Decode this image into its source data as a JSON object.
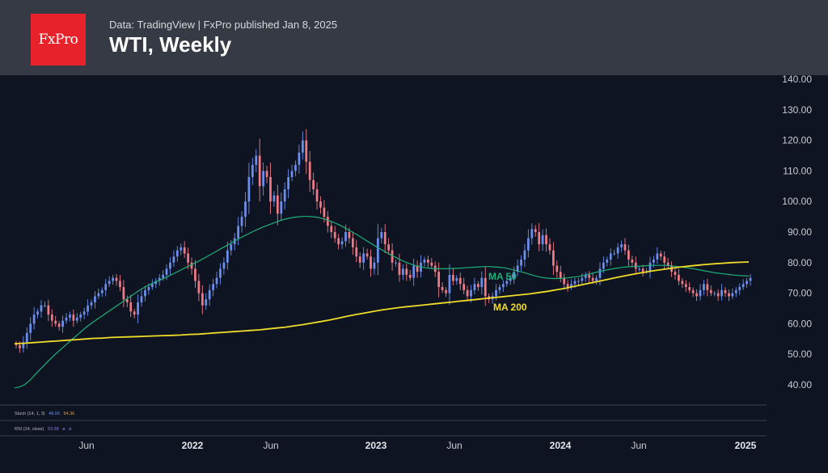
{
  "header": {
    "logo_text": "FxPro",
    "source": "Data: TradingView  |  FxPro published Jan 8, 2025",
    "title": "WTI, Weekly"
  },
  "indicators": {
    "stoch_label": "Stoch (14, 1, 3)",
    "stoch_v1": "48.06",
    "stoch_v2": "54.36",
    "rsi_label": "RSI (14, close)",
    "rsi_v1": "53.38",
    "rsi_v2": "ø",
    "rsi_v3": "ø"
  },
  "colors": {
    "background": "#0e1421",
    "up_candle": "#6c8fef",
    "down_candle": "#ef7b86",
    "ma50": "#1fb079",
    "ma200": "#f0dc2a",
    "header_bg": "#363a45",
    "logo_bg": "#e8222a"
  },
  "chart_data": {
    "type": "candlestick",
    "title": "WTI, Weekly",
    "x_ticks": [
      "Jun",
      "2022",
      "Jun",
      "2023",
      "Jun",
      "2024",
      "Jun",
      "2025"
    ],
    "y_ticks": [
      "140.00",
      "130.00",
      "120.00",
      "110.00",
      "100.00",
      "90.00",
      "80.00",
      "70.00",
      "60.00",
      "50.00",
      "40.00"
    ],
    "ylim": [
      34,
      142
    ],
    "close": [
      53,
      52,
      54,
      57,
      60,
      63,
      64,
      66,
      66,
      63,
      61,
      60,
      59,
      61,
      62,
      63,
      61,
      62,
      63,
      64,
      66,
      67,
      69,
      70,
      71,
      73,
      74,
      75,
      74,
      72,
      68,
      67,
      64,
      63,
      67,
      69,
      71,
      72,
      73,
      74,
      75,
      76,
      78,
      80,
      82,
      84,
      85,
      83,
      80,
      78,
      74,
      70,
      66,
      68,
      71,
      73,
      75,
      78,
      80,
      84,
      86,
      88,
      92,
      95,
      100,
      108,
      112,
      115,
      105,
      110,
      108,
      100,
      102,
      96,
      100,
      104,
      108,
      110,
      112,
      116,
      120,
      113,
      107,
      104,
      100,
      98,
      95,
      92,
      90,
      88,
      86,
      87,
      90,
      88,
      85,
      82,
      80,
      83,
      82,
      78,
      80,
      88,
      90,
      86,
      84,
      80,
      80,
      76,
      78,
      76,
      75,
      79,
      77,
      80,
      81,
      80,
      79,
      77,
      72,
      71,
      70,
      76,
      74,
      75,
      73,
      71,
      69,
      71,
      73,
      72,
      75,
      69,
      68,
      69,
      71,
      72,
      73,
      74,
      75,
      77,
      79,
      81,
      84,
      88,
      91,
      90,
      86,
      89,
      86,
      84,
      79,
      77,
      75,
      73,
      72,
      73,
      74,
      74,
      75,
      76,
      75,
      74,
      75,
      78,
      80,
      81,
      83,
      83,
      85,
      86,
      84,
      81,
      80,
      78,
      78,
      77,
      77,
      80,
      81,
      83,
      82,
      80,
      79,
      77,
      76,
      74,
      73,
      72,
      71,
      70,
      69,
      71,
      73,
      71,
      70,
      70,
      69,
      71,
      70,
      69,
      70,
      71,
      72,
      73,
      74,
      75
    ],
    "ma50": [
      39,
      39.3,
      40,
      41.3,
      43,
      44.7,
      46.3,
      48,
      49.5,
      51,
      52.4,
      53.8,
      55.2,
      56.6,
      58,
      59.3,
      60.5,
      61.6,
      62.7,
      63.8,
      64.9,
      66,
      67.1,
      68.2,
      69.3,
      70.4,
      71.4,
      72.3,
      73.1,
      73.8,
      74.5,
      75.2,
      76,
      76.8,
      77.6,
      78.4,
      79.2,
      80,
      80.8,
      81.7,
      82.6,
      83.5,
      84.4,
      85.3,
      86.2,
      87.1,
      88,
      88.8,
      89.6,
      90.4,
      91.1,
      91.8,
      92.4,
      93,
      93.6,
      94.1,
      94.5,
      94.8,
      95,
      95.1,
      95.1,
      95,
      94.8,
      94.4,
      93.9,
      93.3,
      92.6,
      91.8,
      90.9,
      90,
      89.1,
      88.1,
      87.1,
      86.1,
      85.1,
      84.2,
      83.3,
      82.4,
      81.6,
      80.8,
      80.1,
      79.5,
      79,
      78.6,
      78.3,
      78.1,
      78,
      78,
      78,
      78.1,
      78.1,
      78.2,
      78.3,
      78.4,
      78.5,
      78.6,
      78.7,
      78.7,
      78.6,
      78.5,
      78.3,
      78,
      77.6,
      77.2,
      76.8,
      76.3,
      75.8,
      75.4,
      75.1,
      74.9,
      74.8,
      74.8,
      74.9,
      75,
      75.2,
      75.4,
      75.7,
      76.1,
      76.5,
      76.9,
      77.3,
      77.6,
      77.9,
      78.2,
      78.4,
      78.6,
      78.7,
      78.8,
      78.9,
      79,
      79.1,
      79.1,
      79.1,
      79.1,
      79,
      78.8,
      78.6,
      78.4,
      78.2,
      77.9,
      77.6,
      77.3,
      77,
      76.7,
      76.5,
      76.3,
      76.1,
      75.9,
      75.8,
      75.7,
      75.6
    ],
    "ma200": [
      53.5,
      53.6,
      53.8,
      54,
      54.2,
      54.4,
      54.6,
      54.8,
      55,
      55.2,
      55.3,
      55.5,
      55.6,
      55.7,
      55.8,
      55.9,
      56,
      56.1,
      56.2,
      56.3,
      56.5,
      56.6,
      56.8,
      57,
      57.2,
      57.4,
      57.6,
      57.8,
      58,
      58.3,
      58.6,
      58.9,
      59.3,
      59.7,
      60.2,
      60.7,
      61.2,
      61.8,
      62.4,
      63,
      63.5,
      64,
      64.5,
      64.9,
      65.3,
      65.6,
      65.9,
      66.2,
      66.5,
      66.8,
      67.1,
      67.4,
      67.7,
      68,
      68.3,
      68.6,
      68.9,
      69.2,
      69.5,
      69.8,
      70.2,
      70.6,
      71.1,
      71.6,
      72.2,
      72.8,
      73.4,
      74,
      74.6,
      75.2,
      75.8,
      76.3,
      76.8,
      77.3,
      77.7,
      78.1,
      78.5,
      78.8,
      79.1,
      79.4,
      79.6,
      79.8,
      80,
      80.1,
      80.2
    ],
    "annotations": [
      "MA 50",
      "MA 200"
    ]
  }
}
